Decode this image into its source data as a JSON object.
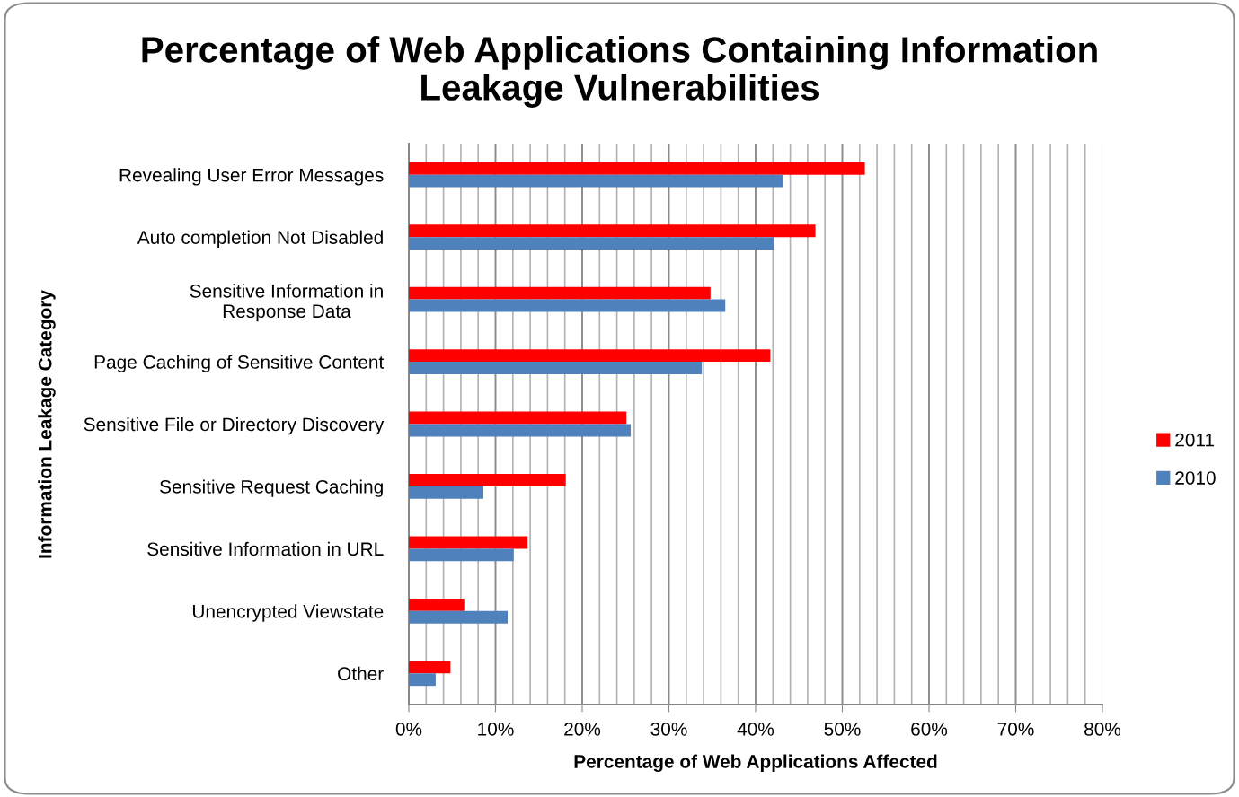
{
  "chart_data": {
    "type": "bar",
    "orientation": "horizontal",
    "title": "Percentage of Web Applications Containing Information\nLeakage Vulnerabilities",
    "xlabel": "Percentage of Web Applications Affected",
    "ylabel": "Information Leakage Category",
    "categories": [
      "Revealing User Error Messages",
      "Auto completion Not Disabled",
      "Sensitive Information in\nResponse Data",
      "Page Caching of Sensitive Content",
      "Sensitive File or Directory Discovery",
      "Sensitive Request Caching",
      "Sensitive Information in URL",
      "Unencrypted Viewstate",
      "Other"
    ],
    "series": [
      {
        "name": "2011",
        "color": "#ff0000",
        "values": [
          52.6,
          46.9,
          34.8,
          41.7,
          25.1,
          18.1,
          13.7,
          6.4,
          4.8
        ]
      },
      {
        "name": "2010",
        "color": "#4f81bd",
        "values": [
          43.2,
          42.1,
          36.5,
          33.8,
          25.6,
          8.6,
          12.1,
          11.4,
          3.1
        ]
      }
    ],
    "xlim": [
      0,
      80
    ],
    "xticks": [
      {
        "value": 0,
        "label": "0%"
      },
      {
        "value": 2,
        "label": null
      },
      {
        "value": 4,
        "label": null
      },
      {
        "value": 6,
        "label": null
      },
      {
        "value": 8,
        "label": null
      },
      {
        "value": 10,
        "label": "10%"
      },
      {
        "value": 12,
        "label": null
      },
      {
        "value": 14,
        "label": null
      },
      {
        "value": 16,
        "label": null
      },
      {
        "value": 18,
        "label": null
      },
      {
        "value": 20,
        "label": "20%"
      },
      {
        "value": 22,
        "label": null
      },
      {
        "value": 24,
        "label": null
      },
      {
        "value": 26,
        "label": null
      },
      {
        "value": 28,
        "label": null
      },
      {
        "value": 30,
        "label": "30%"
      },
      {
        "value": 32,
        "label": null
      },
      {
        "value": 34,
        "label": null
      },
      {
        "value": 36,
        "label": null
      },
      {
        "value": 38,
        "label": null
      },
      {
        "value": 40,
        "label": "40%"
      },
      {
        "value": 42,
        "label": null
      },
      {
        "value": 44,
        "label": null
      },
      {
        "value": 46,
        "label": null
      },
      {
        "value": 48,
        "label": null
      },
      {
        "value": 50,
        "label": "50%"
      },
      {
        "value": 52,
        "label": null
      },
      {
        "value": 54,
        "label": null
      },
      {
        "value": 56,
        "label": null
      },
      {
        "value": 58,
        "label": null
      },
      {
        "value": 60,
        "label": "60%"
      },
      {
        "value": 62,
        "label": null
      },
      {
        "value": 64,
        "label": null
      },
      {
        "value": 66,
        "label": null
      },
      {
        "value": 68,
        "label": null
      },
      {
        "value": 70,
        "label": "70%"
      },
      {
        "value": 72,
        "label": null
      },
      {
        "value": 74,
        "label": null
      },
      {
        "value": 76,
        "label": null
      },
      {
        "value": 78,
        "label": null
      },
      {
        "value": 80,
        "label": "80%"
      }
    ],
    "grid": "x",
    "legend": "right"
  }
}
